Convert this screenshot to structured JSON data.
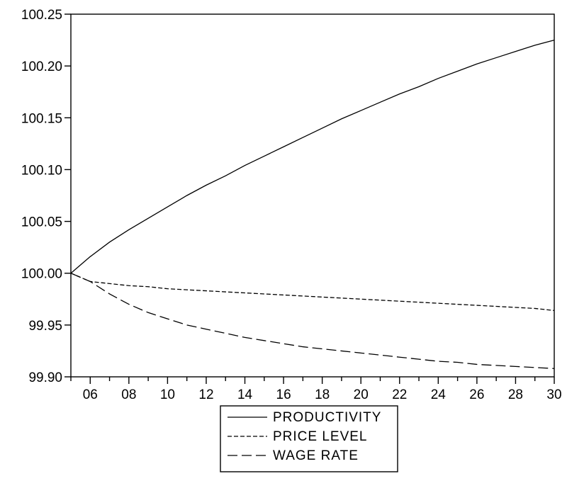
{
  "chart_data": {
    "type": "line",
    "title": "",
    "xlabel": "",
    "ylabel": "",
    "x": [
      5,
      6,
      7,
      8,
      9,
      10,
      11,
      12,
      13,
      14,
      15,
      16,
      17,
      18,
      19,
      20,
      21,
      22,
      23,
      24,
      25,
      26,
      27,
      28,
      29,
      30
    ],
    "xlim": [
      5,
      30
    ],
    "ylim": [
      99.9,
      100.25
    ],
    "xticks": [
      {
        "value": 6,
        "label": "06"
      },
      {
        "value": 8,
        "label": "08"
      },
      {
        "value": 10,
        "label": "10"
      },
      {
        "value": 12,
        "label": "12"
      },
      {
        "value": 14,
        "label": "14"
      },
      {
        "value": 16,
        "label": "16"
      },
      {
        "value": 18,
        "label": "18"
      },
      {
        "value": 20,
        "label": "20"
      },
      {
        "value": 22,
        "label": "22"
      },
      {
        "value": 24,
        "label": "24"
      },
      {
        "value": 26,
        "label": "26"
      },
      {
        "value": 28,
        "label": "28"
      },
      {
        "value": 30,
        "label": "30"
      }
    ],
    "yticks": [
      {
        "value": 99.9,
        "label": "99.90"
      },
      {
        "value": 99.95,
        "label": "99.95"
      },
      {
        "value": 100.0,
        "label": "100.00"
      },
      {
        "value": 100.05,
        "label": "100.05"
      },
      {
        "value": 100.1,
        "label": "100.10"
      },
      {
        "value": 100.15,
        "label": "100.15"
      },
      {
        "value": 100.2,
        "label": "100.20"
      },
      {
        "value": 100.25,
        "label": "100.25"
      }
    ],
    "series": [
      {
        "name": "PRODUCTIVITY",
        "style": "solid",
        "values": [
          100.0,
          100.016,
          100.03,
          100.042,
          100.053,
          100.064,
          100.075,
          100.085,
          100.094,
          100.104,
          100.113,
          100.122,
          100.131,
          100.14,
          100.149,
          100.157,
          100.165,
          100.173,
          100.18,
          100.188,
          100.195,
          100.202,
          100.208,
          100.214,
          100.22,
          100.225
        ]
      },
      {
        "name": "PRICE LEVEL",
        "style": "short-dash",
        "values": [
          100.0,
          99.992,
          99.99,
          99.988,
          99.987,
          99.985,
          99.984,
          99.983,
          99.982,
          99.981,
          99.98,
          99.979,
          99.978,
          99.977,
          99.976,
          99.975,
          99.974,
          99.973,
          99.972,
          99.971,
          99.97,
          99.969,
          99.968,
          99.967,
          99.966,
          99.964
        ]
      },
      {
        "name": "WAGE RATE",
        "style": "long-dash",
        "values": [
          100.0,
          99.992,
          99.98,
          99.97,
          99.962,
          99.956,
          99.95,
          99.946,
          99.942,
          99.938,
          99.935,
          99.932,
          99.929,
          99.927,
          99.925,
          99.923,
          99.921,
          99.919,
          99.917,
          99.915,
          99.914,
          99.912,
          99.911,
          99.91,
          99.909,
          99.908
        ]
      }
    ],
    "legend_position": "bottom-center",
    "grid": false
  }
}
